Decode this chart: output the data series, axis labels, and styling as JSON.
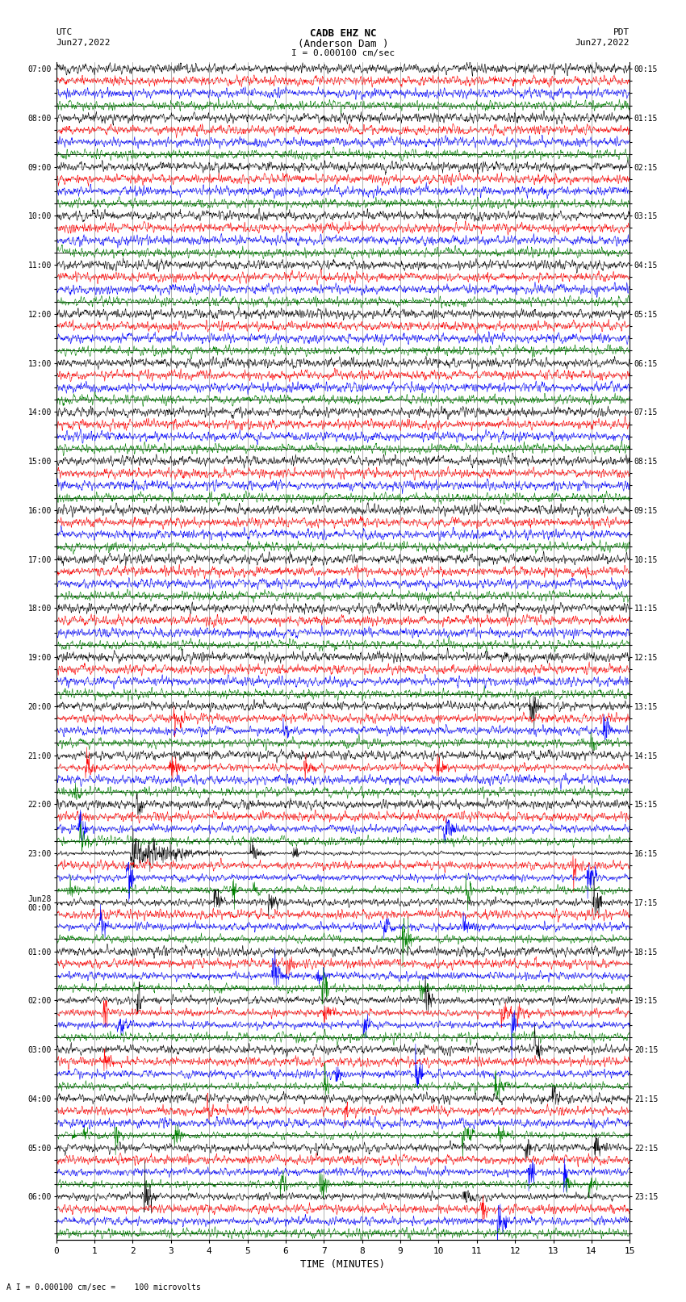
{
  "title_line1": "CADB EHZ NC",
  "title_line2": "(Anderson Dam )",
  "scale_label": "I = 0.000100 cm/sec",
  "left_header_1": "UTC",
  "left_header_2": "Jun27,2022",
  "right_header_1": "PDT",
  "right_header_2": "Jun27,2022",
  "bottom_label": "TIME (MINUTES)",
  "footer_label": "A I = 0.000100 cm/sec =    100 microvolts",
  "xlabel_ticks": [
    0,
    1,
    2,
    3,
    4,
    5,
    6,
    7,
    8,
    9,
    10,
    11,
    12,
    13,
    14,
    15
  ],
  "left_time_labels": [
    "07:00",
    "",
    "",
    "",
    "08:00",
    "",
    "",
    "",
    "09:00",
    "",
    "",
    "",
    "10:00",
    "",
    "",
    "",
    "11:00",
    "",
    "",
    "",
    "12:00",
    "",
    "",
    "",
    "13:00",
    "",
    "",
    "",
    "14:00",
    "",
    "",
    "",
    "15:00",
    "",
    "",
    "",
    "16:00",
    "",
    "",
    "",
    "17:00",
    "",
    "",
    "",
    "18:00",
    "",
    "",
    "",
    "19:00",
    "",
    "",
    "",
    "20:00",
    "",
    "",
    "",
    "21:00",
    "",
    "",
    "",
    "22:00",
    "",
    "",
    "",
    "23:00",
    "",
    "",
    "",
    "Jun28\n00:00",
    "",
    "",
    "",
    "01:00",
    "",
    "",
    "",
    "02:00",
    "",
    "",
    "",
    "03:00",
    "",
    "",
    "",
    "04:00",
    "",
    "",
    "",
    "05:00",
    "",
    "",
    "",
    "06:00",
    "",
    "",
    ""
  ],
  "right_time_labels": [
    "00:15",
    "",
    "",
    "",
    "01:15",
    "",
    "",
    "",
    "02:15",
    "",
    "",
    "",
    "03:15",
    "",
    "",
    "",
    "04:15",
    "",
    "",
    "",
    "05:15",
    "",
    "",
    "",
    "06:15",
    "",
    "",
    "",
    "07:15",
    "",
    "",
    "",
    "08:15",
    "",
    "",
    "",
    "09:15",
    "",
    "",
    "",
    "10:15",
    "",
    "",
    "",
    "11:15",
    "",
    "",
    "",
    "12:15",
    "",
    "",
    "",
    "13:15",
    "",
    "",
    "",
    "14:15",
    "",
    "",
    "",
    "15:15",
    "",
    "",
    "",
    "16:15",
    "",
    "",
    "",
    "17:15",
    "",
    "",
    "",
    "18:15",
    "",
    "",
    "",
    "19:15",
    "",
    "",
    "",
    "20:15",
    "",
    "",
    "",
    "21:15",
    "",
    "",
    "",
    "22:15",
    "",
    "",
    "",
    "23:15",
    "",
    "",
    ""
  ],
  "num_groups": 24,
  "lines_per_group": 4,
  "fig_width": 8.5,
  "fig_height": 16.13,
  "bg_color": "#ffffff",
  "trace_colors": [
    "black",
    "red",
    "blue",
    "green"
  ],
  "grid_color": "#777777",
  "line_color": "#000000"
}
